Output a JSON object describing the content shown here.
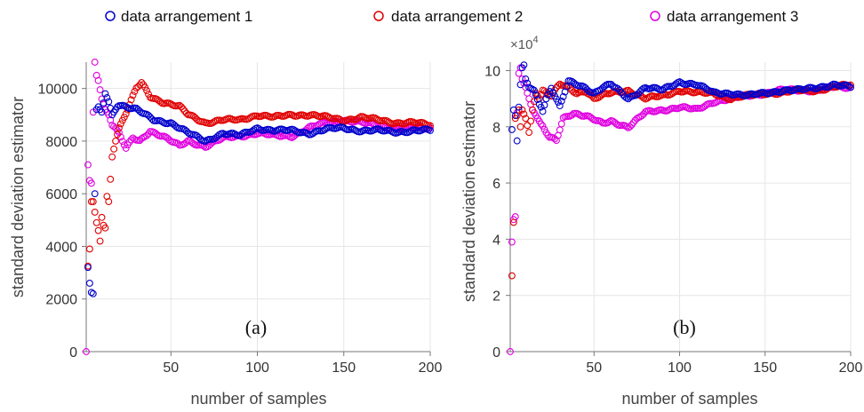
{
  "legend": {
    "entries": [
      {
        "label": "data arrangement 1",
        "color": "#0000cc"
      },
      {
        "label": "data arrangement 2",
        "color": "#e00000"
      },
      {
        "label": "data arrangement 3",
        "color": "#e000e0"
      }
    ]
  },
  "chart_data": [
    {
      "type": "scatter",
      "panel_label": "(a)",
      "xlabel": "number of samples",
      "ylabel": "standard deviation estimator",
      "xlim": [
        1,
        200
      ],
      "ylim": [
        0,
        11000
      ],
      "xticks": [
        50,
        100,
        150,
        200
      ],
      "yticks": [
        0,
        2000,
        4000,
        6000,
        8000,
        10000
      ],
      "exponent_label": "",
      "grid": true,
      "series": [
        {
          "name": "data arrangement 1",
          "color": "#0000cc",
          "anchors": [
            [
              2,
              3200
            ],
            [
              3,
              2600
            ],
            [
              4,
              2250
            ],
            [
              5,
              2200
            ],
            [
              6,
              6000
            ],
            [
              7,
              9200
            ],
            [
              8,
              9300
            ],
            [
              10,
              9100
            ],
            [
              12,
              9800
            ],
            [
              14,
              9500
            ],
            [
              16,
              9000
            ],
            [
              18,
              9200
            ],
            [
              20,
              9400
            ],
            [
              25,
              9300
            ],
            [
              30,
              9200
            ],
            [
              35,
              9000
            ],
            [
              40,
              8800
            ],
            [
              50,
              8700
            ],
            [
              60,
              8300
            ],
            [
              70,
              8000
            ],
            [
              80,
              8300
            ],
            [
              90,
              8200
            ],
            [
              100,
              8500
            ],
            [
              110,
              8400
            ],
            [
              120,
              8400
            ],
            [
              130,
              8300
            ],
            [
              140,
              8450
            ],
            [
              150,
              8500
            ],
            [
              160,
              8400
            ],
            [
              170,
              8400
            ],
            [
              180,
              8350
            ],
            [
              190,
              8400
            ],
            [
              200,
              8400
            ]
          ]
        },
        {
          "name": "data arrangement 2",
          "color": "#e00000",
          "anchors": [
            [
              2,
              3250
            ],
            [
              3,
              3900
            ],
            [
              4,
              5700
            ],
            [
              5,
              5700
            ],
            [
              6,
              5300
            ],
            [
              7,
              4900
            ],
            [
              8,
              4600
            ],
            [
              9,
              4200
            ],
            [
              10,
              5100
            ],
            [
              11,
              4800
            ],
            [
              12,
              4700
            ],
            [
              13,
              5900
            ],
            [
              14,
              5700
            ],
            [
              16,
              7400
            ],
            [
              18,
              8000
            ],
            [
              20,
              8500
            ],
            [
              25,
              9200
            ],
            [
              30,
              10000
            ],
            [
              33,
              10200
            ],
            [
              38,
              9700
            ],
            [
              45,
              9500
            ],
            [
              55,
              9300
            ],
            [
              60,
              9000
            ],
            [
              70,
              8700
            ],
            [
              80,
              8800
            ],
            [
              90,
              8800
            ],
            [
              100,
              9000
            ],
            [
              110,
              8900
            ],
            [
              120,
              9000
            ],
            [
              130,
              9000
            ],
            [
              140,
              8900
            ],
            [
              150,
              8800
            ],
            [
              160,
              8900
            ],
            [
              170,
              8800
            ],
            [
              180,
              8700
            ],
            [
              190,
              8700
            ],
            [
              200,
              8600
            ]
          ]
        },
        {
          "name": "data arrangement 3",
          "color": "#e000e0",
          "anchors": [
            [
              1,
              0
            ],
            [
              2,
              7100
            ],
            [
              3,
              6500
            ],
            [
              4,
              6400
            ],
            [
              5,
              9100
            ],
            [
              6,
              11000
            ],
            [
              7,
              10500
            ],
            [
              8,
              10300
            ],
            [
              10,
              9600
            ],
            [
              12,
              9200
            ],
            [
              14,
              9000
            ],
            [
              16,
              8600
            ],
            [
              18,
              8500
            ],
            [
              20,
              8300
            ],
            [
              24,
              7700
            ],
            [
              28,
              8100
            ],
            [
              32,
              8000
            ],
            [
              38,
              8400
            ],
            [
              45,
              8200
            ],
            [
              55,
              7800
            ],
            [
              60,
              8000
            ],
            [
              70,
              7800
            ],
            [
              80,
              8100
            ],
            [
              90,
              8200
            ],
            [
              100,
              8300
            ],
            [
              110,
              8200
            ],
            [
              120,
              8200
            ],
            [
              130,
              8500
            ],
            [
              140,
              8700
            ],
            [
              150,
              8800
            ],
            [
              160,
              8700
            ],
            [
              170,
              8600
            ],
            [
              180,
              8500
            ],
            [
              190,
              8500
            ],
            [
              200,
              8500
            ]
          ]
        }
      ]
    },
    {
      "type": "scatter",
      "panel_label": "(b)",
      "xlabel": "number of samples",
      "ylabel": "standard deviation estimator",
      "xlim": [
        1,
        200
      ],
      "ylim": [
        0,
        10.3
      ],
      "xticks": [
        50,
        100,
        150,
        200
      ],
      "yticks": [
        0,
        2,
        4,
        6,
        8,
        10
      ],
      "exponent_label": "×10",
      "exponent_power": "4",
      "grid": true,
      "series": [
        {
          "name": "data arrangement 1",
          "color": "#0000cc",
          "anchors": [
            [
              2,
              7.9
            ],
            [
              3,
              8.6
            ],
            [
              4,
              8.4
            ],
            [
              5,
              7.5
            ],
            [
              6,
              8.7
            ],
            [
              7,
              9.5
            ],
            [
              8,
              10.1
            ],
            [
              9,
              10.2
            ],
            [
              10,
              9.7
            ],
            [
              12,
              9.4
            ],
            [
              15,
              9.3
            ],
            [
              18,
              8.8
            ],
            [
              20,
              8.6
            ],
            [
              22,
              9.0
            ],
            [
              25,
              9.4
            ],
            [
              30,
              8.7
            ],
            [
              35,
              9.6
            ],
            [
              40,
              9.5
            ],
            [
              45,
              9.4
            ],
            [
              50,
              9.2
            ],
            [
              55,
              9.4
            ],
            [
              60,
              9.5
            ],
            [
              70,
              9.0
            ],
            [
              80,
              9.4
            ],
            [
              90,
              9.3
            ],
            [
              100,
              9.6
            ],
            [
              110,
              9.5
            ],
            [
              120,
              9.2
            ],
            [
              130,
              9.2
            ],
            [
              140,
              9.1
            ],
            [
              150,
              9.2
            ],
            [
              160,
              9.3
            ],
            [
              170,
              9.3
            ],
            [
              180,
              9.4
            ],
            [
              190,
              9.5
            ],
            [
              200,
              9.4
            ]
          ]
        },
        {
          "name": "data arrangement 2",
          "color": "#e00000",
          "anchors": [
            [
              2,
              2.7
            ],
            [
              3,
              4.6
            ],
            [
              4,
              8.3
            ],
            [
              5,
              8.4
            ],
            [
              6,
              8.6
            ],
            [
              7,
              8.0
            ],
            [
              8,
              8.6
            ],
            [
              10,
              8.3
            ],
            [
              12,
              7.8
            ],
            [
              14,
              8.6
            ],
            [
              16,
              9.2
            ],
            [
              18,
              9.0
            ],
            [
              20,
              9.3
            ],
            [
              25,
              9.1
            ],
            [
              30,
              9.5
            ],
            [
              35,
              9.4
            ],
            [
              40,
              9.2
            ],
            [
              45,
              9.3
            ],
            [
              50,
              9.0
            ],
            [
              60,
              9.2
            ],
            [
              70,
              9.3
            ],
            [
              80,
              9.0
            ],
            [
              90,
              9.1
            ],
            [
              100,
              9.3
            ],
            [
              110,
              9.2
            ],
            [
              120,
              9.2
            ],
            [
              130,
              9.0
            ],
            [
              140,
              9.1
            ],
            [
              150,
              9.2
            ],
            [
              160,
              9.2
            ],
            [
              170,
              9.3
            ],
            [
              180,
              9.3
            ],
            [
              190,
              9.4
            ],
            [
              200,
              9.5
            ]
          ]
        },
        {
          "name": "data arrangement 3",
          "color": "#e000e0",
          "anchors": [
            [
              1,
              0
            ],
            [
              2,
              3.9
            ],
            [
              3,
              4.7
            ],
            [
              4,
              4.8
            ],
            [
              5,
              8.5
            ],
            [
              6,
              9.9
            ],
            [
              7,
              10.1
            ],
            [
              8,
              9.7
            ],
            [
              10,
              9.4
            ],
            [
              12,
              9.0
            ],
            [
              14,
              8.6
            ],
            [
              16,
              8.4
            ],
            [
              18,
              8.2
            ],
            [
              20,
              8.0
            ],
            [
              24,
              7.6
            ],
            [
              28,
              7.5
            ],
            [
              32,
              8.3
            ],
            [
              38,
              8.5
            ],
            [
              45,
              8.4
            ],
            [
              55,
              8.1
            ],
            [
              60,
              8.2
            ],
            [
              70,
              8.0
            ],
            [
              80,
              8.5
            ],
            [
              90,
              8.6
            ],
            [
              100,
              8.7
            ],
            [
              110,
              8.6
            ],
            [
              120,
              8.9
            ],
            [
              130,
              9.0
            ],
            [
              140,
              9.1
            ],
            [
              150,
              9.2
            ],
            [
              160,
              9.3
            ],
            [
              170,
              9.3
            ],
            [
              180,
              9.3
            ],
            [
              190,
              9.4
            ],
            [
              200,
              9.4
            ]
          ]
        }
      ]
    }
  ]
}
